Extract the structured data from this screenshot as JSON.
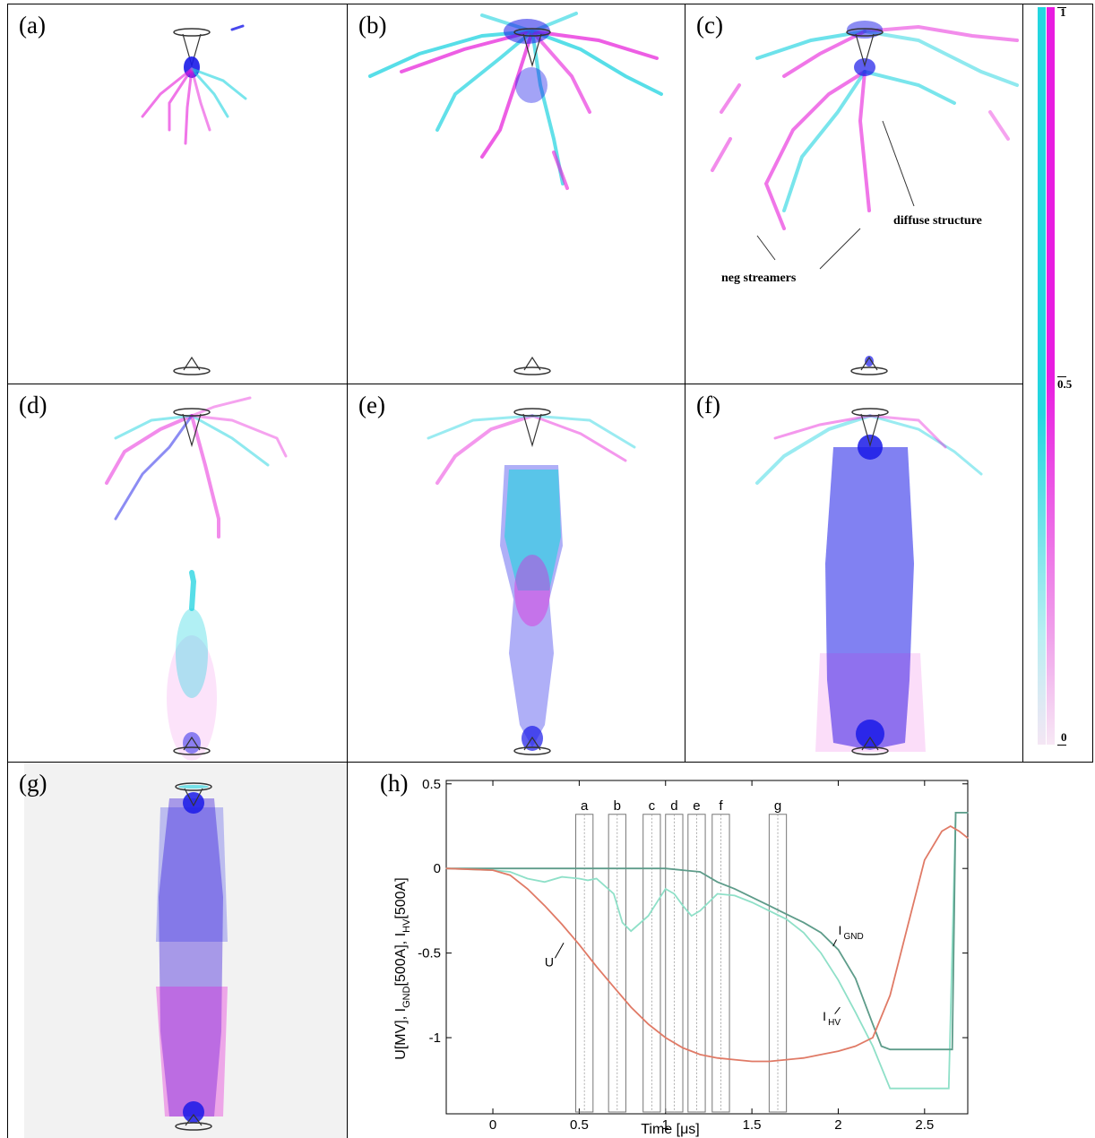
{
  "panels": [
    {
      "id": "a",
      "label": "(a)"
    },
    {
      "id": "b",
      "label": "(b)"
    },
    {
      "id": "c",
      "label": "(c)"
    },
    {
      "id": "d",
      "label": "(d)"
    },
    {
      "id": "e",
      "label": "(e)"
    },
    {
      "id": "f",
      "label": "(f)"
    },
    {
      "id": "g",
      "label": "(g)"
    },
    {
      "id": "h",
      "label": "(h)"
    }
  ],
  "annotations": {
    "diffuse_structure": "diffuse structure",
    "neg_streamers": "neg streamers"
  },
  "colorbar": {
    "tick_labels": [
      "1",
      "0.5",
      "0"
    ],
    "colors": {
      "cyan": "#23d6e0",
      "magenta": "#e81ce0",
      "low": "#f4e6f4"
    }
  },
  "colors": {
    "u_curve": "#e07a66",
    "i_gnd_curve": "#5e9c8a",
    "i_hv_curve": "#8fe0c8",
    "streamer_cyan": "#1fd3e0",
    "streamer_magenta": "#e61ad8",
    "streamer_blue": "#1a1ae8"
  },
  "chart_data": {
    "type": "line",
    "xlabel": "Time [μs]",
    "ylabel_parts": [
      "U[MV], I",
      "GND",
      "[500A], I",
      "HV",
      "[500A]"
    ],
    "xlim": [
      -0.27,
      2.75
    ],
    "ylim": [
      -1.45,
      0.52
    ],
    "x_ticks": [
      0,
      0.5,
      1,
      1.5,
      2,
      2.5
    ],
    "x_tick_labels": [
      "0",
      "0.5",
      "1",
      "1.5",
      "2",
      "2.5"
    ],
    "y_ticks": [
      0.5,
      0,
      -0.5,
      -1
    ],
    "y_tick_labels": [
      "0.5",
      "0",
      "-0.5",
      "-1"
    ],
    "frames": [
      {
        "label": "a",
        "x_start": 0.48,
        "x_end": 0.58
      },
      {
        "label": "b",
        "x_start": 0.67,
        "x_end": 0.77
      },
      {
        "label": "c",
        "x_start": 0.87,
        "x_end": 0.97
      },
      {
        "label": "d",
        "x_start": 1.0,
        "x_end": 1.1
      },
      {
        "label": "e",
        "x_start": 1.13,
        "x_end": 1.23
      },
      {
        "label": "f",
        "x_start": 1.27,
        "x_end": 1.37
      },
      {
        "label": "g",
        "x_start": 1.6,
        "x_end": 1.7
      }
    ],
    "frame_y_range": [
      -1.45,
      0.32
    ],
    "series": [
      {
        "name": "U",
        "x": [
          -0.27,
          0,
          0.1,
          0.2,
          0.3,
          0.4,
          0.5,
          0.6,
          0.7,
          0.8,
          0.9,
          1.0,
          1.1,
          1.2,
          1.3,
          1.4,
          1.5,
          1.6,
          1.7,
          1.8,
          1.9,
          2.0,
          2.1,
          2.2,
          2.3,
          2.4,
          2.5,
          2.6,
          2.65,
          2.7,
          2.75
        ],
        "y": [
          0,
          -0.01,
          -0.04,
          -0.12,
          -0.22,
          -0.33,
          -0.45,
          -0.58,
          -0.7,
          -0.82,
          -0.92,
          -1.0,
          -1.06,
          -1.1,
          -1.12,
          -1.13,
          -1.14,
          -1.14,
          -1.13,
          -1.12,
          -1.1,
          -1.08,
          -1.05,
          -1.0,
          -0.75,
          -0.35,
          0.05,
          0.22,
          0.25,
          0.22,
          0.18
        ]
      },
      {
        "name": "I_GND",
        "x": [
          -0.27,
          0,
          0.5,
          1.0,
          1.2,
          1.3,
          1.4,
          1.5,
          1.6,
          1.7,
          1.8,
          1.9,
          2.0,
          2.1,
          2.2,
          2.25,
          2.3,
          2.4,
          2.5,
          2.66,
          2.68,
          2.75
        ],
        "y": [
          0,
          0,
          0,
          0,
          -0.02,
          -0.08,
          -0.12,
          -0.17,
          -0.22,
          -0.27,
          -0.32,
          -0.38,
          -0.48,
          -0.65,
          -0.92,
          -1.05,
          -1.07,
          -1.07,
          -1.07,
          -1.07,
          0.33,
          0.33
        ]
      },
      {
        "name": "I_HV",
        "x": [
          -0.27,
          0,
          0.1,
          0.2,
          0.3,
          0.4,
          0.5,
          0.55,
          0.6,
          0.7,
          0.75,
          0.8,
          0.9,
          1.0,
          1.05,
          1.1,
          1.15,
          1.2,
          1.25,
          1.3,
          1.4,
          1.5,
          1.6,
          1.7,
          1.8,
          1.9,
          2.0,
          2.1,
          2.2,
          2.3,
          2.5,
          2.64,
          2.68,
          2.75
        ],
        "y": [
          0,
          -0.01,
          -0.02,
          -0.06,
          -0.08,
          -0.05,
          -0.06,
          -0.07,
          -0.06,
          -0.15,
          -0.32,
          -0.37,
          -0.28,
          -0.12,
          -0.15,
          -0.22,
          -0.28,
          -0.25,
          -0.2,
          -0.15,
          -0.16,
          -0.2,
          -0.25,
          -0.3,
          -0.38,
          -0.5,
          -0.66,
          -0.85,
          -1.05,
          -1.3,
          -1.3,
          -1.3,
          0.33,
          0.33
        ]
      }
    ],
    "series_labels": [
      {
        "text": "U",
        "sub": ""
      },
      {
        "text": "I",
        "sub": "GND"
      },
      {
        "text": "I",
        "sub": "HV"
      }
    ]
  }
}
